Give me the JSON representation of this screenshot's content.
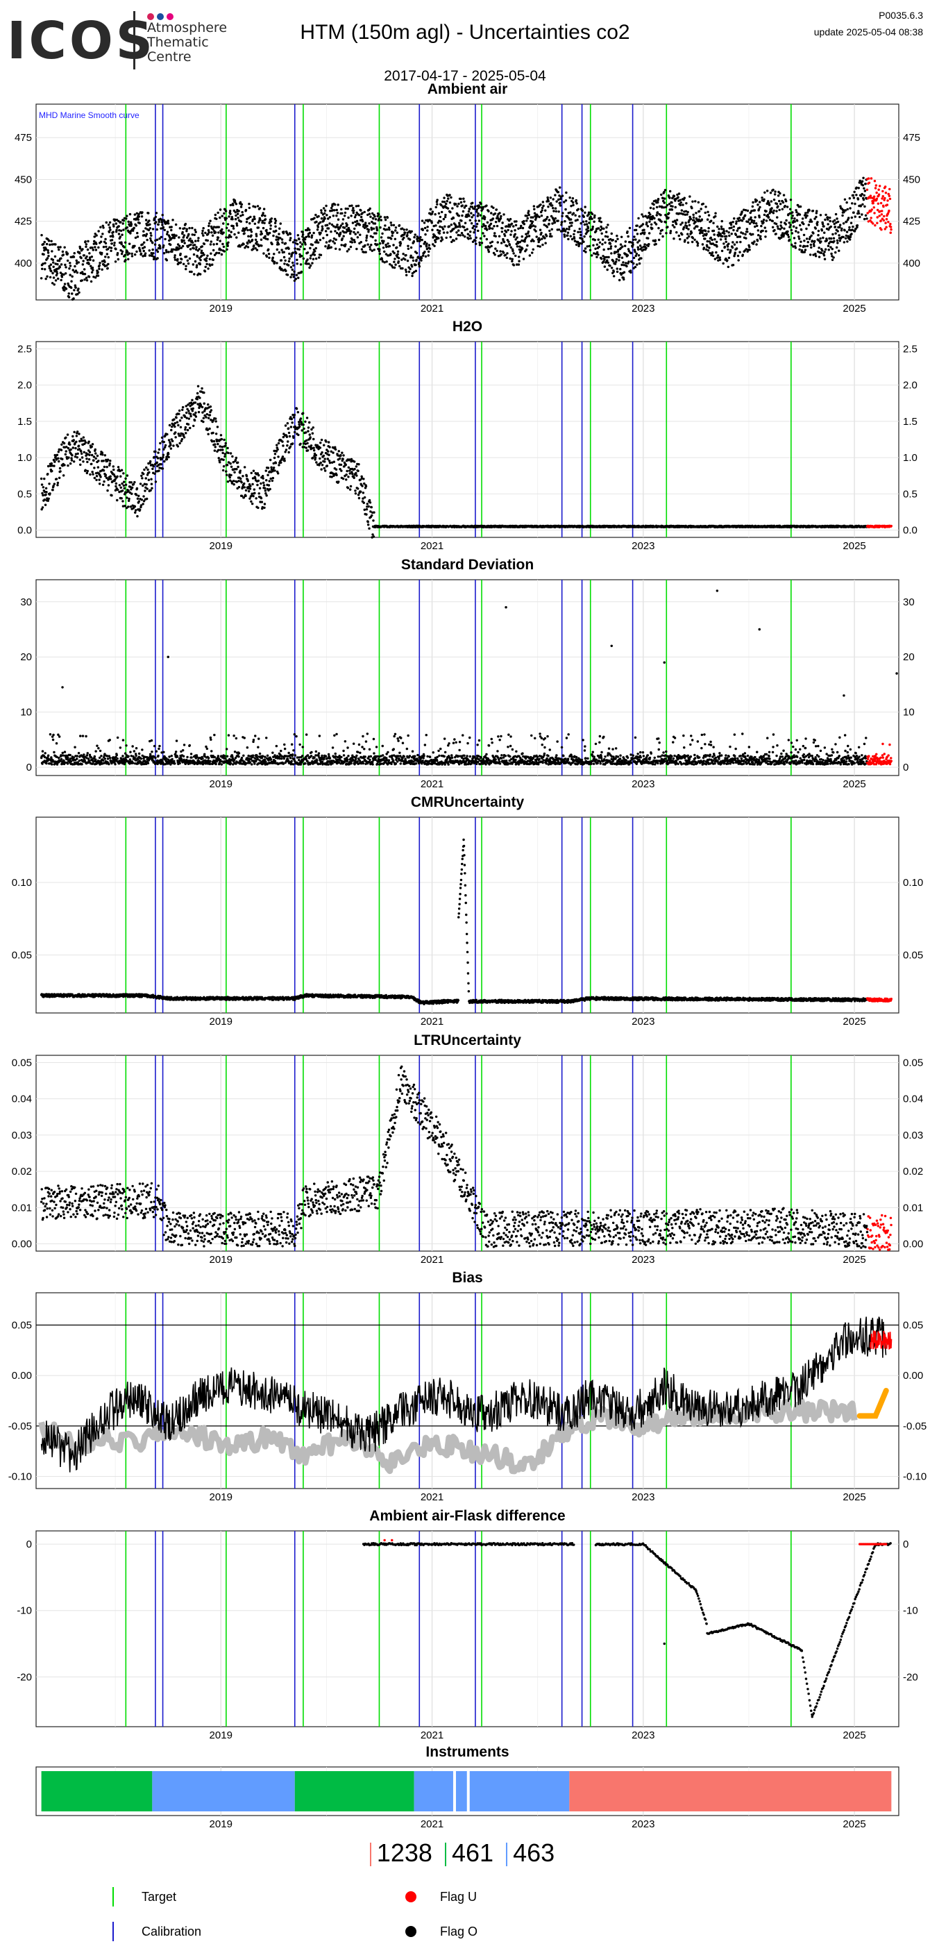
{
  "header": {
    "logo_word": "ICOS",
    "logo_lines": [
      "Atmosphere",
      "Thematic",
      "Centre"
    ],
    "logo_dot_colors": [
      "#d6205a",
      "#1a4fa0",
      "#e5007e"
    ],
    "title": "HTM  (150m agl) - Uncertainties co2",
    "version": "P0035.6.3",
    "update": "update  2025-05-04 08:38",
    "date_range": "2017-04-17 - 2025-05-04"
  },
  "colors": {
    "target": "#00dd00",
    "calibration": "#1a1acc",
    "flag_u": "#ff0000",
    "flag_o": "#000000",
    "smooth": "#bbbbbb",
    "smooth_recent": "#ffa500"
  },
  "event_lines": {
    "target": [
      2018.1,
      2019.05,
      2019.78,
      2020.5,
      2021.47,
      2022.5,
      2023.22,
      2024.4
    ],
    "calibration": [
      2018.38,
      2018.45,
      2019.7,
      2020.88,
      2021.41,
      2022.23,
      2022.42,
      2022.9
    ]
  },
  "chart_data": [
    {
      "type": "scatter",
      "title": "Ambient air",
      "annotation": "MHD Marine Smooth curve",
      "x_ticks": [
        "2019",
        "2021",
        "2023",
        "2025"
      ],
      "y_ticks": [
        "400",
        "425",
        "450",
        "475"
      ],
      "ylim": [
        378,
        495
      ],
      "series": [
        {
          "values_desc": "",
          "points": [
            [
              2017.3,
              405
            ],
            [
              2017.6,
              392
            ],
            [
              2017.9,
              410
            ],
            [
              2018.2,
              418
            ],
            [
              2018.5,
              415
            ],
            [
              2018.8,
              405
            ],
            [
              2019.1,
              425
            ],
            [
              2019.4,
              420
            ],
            [
              2019.7,
              402
            ],
            [
              2020.0,
              422
            ],
            [
              2020.4,
              420
            ],
            [
              2020.8,
              405
            ],
            [
              2021.1,
              428
            ],
            [
              2021.5,
              422
            ],
            [
              2021.8,
              412
            ],
            [
              2022.2,
              432
            ],
            [
              2022.5,
              418
            ],
            [
              2022.8,
              402
            ],
            [
              2023.2,
              430
            ],
            [
              2023.5,
              425
            ],
            [
              2023.8,
              410
            ],
            [
              2024.2,
              432
            ],
            [
              2024.5,
              420
            ],
            [
              2024.8,
              415
            ],
            [
              2025.1,
              440
            ],
            [
              2025.3,
              432
            ]
          ]
        }
      ]
    },
    {
      "type": "scatter",
      "title": "H2O",
      "x_ticks": [
        "2019",
        "2021",
        "2023",
        "2025"
      ],
      "y_ticks": [
        "0.0",
        "0.5",
        "1.0",
        "1.5",
        "2.0",
        "2.5"
      ],
      "ylim": [
        -0.1,
        2.6
      ],
      "series": [
        {
          "points": [
            [
              2017.3,
              0.5
            ],
            [
              2017.6,
              1.2
            ],
            [
              2017.9,
              0.8
            ],
            [
              2018.2,
              0.4
            ],
            [
              2018.5,
              1.2
            ],
            [
              2018.8,
              1.8
            ],
            [
              2019.1,
              0.8
            ],
            [
              2019.4,
              0.5
            ],
            [
              2019.7,
              1.5
            ],
            [
              2020.0,
              1.0
            ],
            [
              2020.3,
              0.7
            ],
            [
              2020.45,
              0.05
            ],
            [
              2021.0,
              0.04
            ],
            [
              2022.0,
              0.05
            ],
            [
              2023.0,
              0.05
            ],
            [
              2024.0,
              0.05
            ],
            [
              2025.3,
              0.05
            ]
          ]
        }
      ]
    },
    {
      "type": "scatter",
      "title": "Standard Deviation",
      "x_ticks": [
        "2019",
        "2021",
        "2023",
        "2025"
      ],
      "y_ticks": [
        "0",
        "10",
        "20",
        "30"
      ],
      "ylim": [
        -1.5,
        34
      ],
      "series": [
        {
          "points": [
            [
              2017.5,
              14.5
            ],
            [
              2018.5,
              20
            ],
            [
              2021.7,
              29
            ],
            [
              2022.7,
              22
            ],
            [
              2023.2,
              19
            ],
            [
              2023.7,
              32
            ],
            [
              2024.1,
              25
            ],
            [
              2024.9,
              13
            ],
            [
              2025.4,
              17
            ]
          ]
        }
      ]
    },
    {
      "type": "scatter",
      "title": "CMRUncertainty",
      "x_ticks": [
        "2019",
        "2021",
        "2023",
        "2025"
      ],
      "y_ticks": [
        "0.05",
        "0.10"
      ],
      "ylim": [
        0.01,
        0.145
      ],
      "series": [
        {
          "points": [
            [
              2017.3,
              0.022
            ],
            [
              2018.3,
              0.022
            ],
            [
              2018.5,
              0.02
            ],
            [
              2019.7,
              0.02
            ],
            [
              2019.8,
              0.022
            ],
            [
              2020.8,
              0.021
            ],
            [
              2020.9,
              0.017
            ],
            [
              2021.2,
              0.018
            ],
            [
              2021.3,
              0.13
            ],
            [
              2021.35,
              0.018
            ],
            [
              2022.3,
              0.018
            ],
            [
              2022.5,
              0.02
            ],
            [
              2025.3,
              0.019
            ]
          ]
        }
      ]
    },
    {
      "type": "scatter",
      "title": "LTRUncertainty",
      "x_ticks": [
        "2019",
        "2021",
        "2023",
        "2025"
      ],
      "y_ticks": [
        "0.00",
        "0.01",
        "0.02",
        "0.03",
        "0.04",
        "0.05"
      ],
      "ylim": [
        -0.002,
        0.052
      ],
      "series": [
        {
          "points": [
            [
              2017.3,
              0.011
            ],
            [
              2018.4,
              0.012
            ],
            [
              2018.5,
              0.004
            ],
            [
              2019.7,
              0.004
            ],
            [
              2019.8,
              0.012
            ],
            [
              2020.5,
              0.014
            ],
            [
              2020.7,
              0.045
            ],
            [
              2021.1,
              0.028
            ],
            [
              2021.5,
              0.004
            ],
            [
              2024.4,
              0.005
            ],
            [
              2025.3,
              0.003
            ]
          ]
        }
      ]
    },
    {
      "type": "line",
      "title": "Bias",
      "x_ticks": [
        "2019",
        "2021",
        "2023",
        "2025"
      ],
      "y_ticks": [
        "-0.10",
        "-0.05",
        "0.00",
        "0.05"
      ],
      "ylim": [
        -0.112,
        0.082
      ],
      "reference_lines": [
        0.05,
        -0.05
      ],
      "series": [
        {
          "points": [
            [
              2017.3,
              -0.06
            ],
            [
              2017.6,
              -0.08
            ],
            [
              2017.9,
              -0.04
            ],
            [
              2018.2,
              -0.02
            ],
            [
              2018.5,
              -0.05
            ],
            [
              2018.8,
              -0.02
            ],
            [
              2019.1,
              -0.01
            ],
            [
              2019.5,
              -0.02
            ],
            [
              2019.7,
              -0.03
            ],
            [
              2020.0,
              -0.04
            ],
            [
              2020.4,
              -0.06
            ],
            [
              2020.8,
              -0.03
            ],
            [
              2021.1,
              -0.02
            ],
            [
              2021.5,
              -0.04
            ],
            [
              2021.9,
              -0.02
            ],
            [
              2022.3,
              -0.04
            ],
            [
              2022.5,
              -0.02
            ],
            [
              2022.9,
              -0.04
            ],
            [
              2023.2,
              -0.01
            ],
            [
              2023.5,
              -0.035
            ],
            [
              2024.0,
              -0.03
            ],
            [
              2024.5,
              -0.01
            ],
            [
              2024.9,
              0.035
            ],
            [
              2025.2,
              0.04
            ],
            [
              2025.3,
              0.035
            ]
          ]
        },
        {
          "points": [
            [
              2017.3,
              -0.05
            ],
            [
              2017.6,
              -0.07
            ],
            [
              2017.9,
              -0.06
            ],
            [
              2018.2,
              -0.07
            ],
            [
              2018.5,
              -0.05
            ],
            [
              2018.8,
              -0.06
            ],
            [
              2019.1,
              -0.07
            ],
            [
              2019.5,
              -0.06
            ],
            [
              2019.8,
              -0.08
            ],
            [
              2020.2,
              -0.06
            ],
            [
              2020.6,
              -0.09
            ],
            [
              2020.9,
              -0.07
            ],
            [
              2021.2,
              -0.07
            ],
            [
              2021.6,
              -0.08
            ],
            [
              2021.9,
              -0.09
            ],
            [
              2022.2,
              -0.06
            ],
            [
              2022.6,
              -0.04
            ],
            [
              2023.0,
              -0.05
            ],
            [
              2023.4,
              -0.04
            ],
            [
              2024.0,
              -0.035
            ],
            [
              2025.0,
              -0.035
            ]
          ]
        },
        {
          "points": [
            [
              2025.05,
              -0.04
            ],
            [
              2025.2,
              -0.04
            ],
            [
              2025.3,
              -0.015
            ]
          ]
        }
      ]
    },
    {
      "type": "scatter",
      "title": "Ambient air-Flask difference",
      "x_ticks": [
        "2019",
        "2021",
        "2023",
        "2025"
      ],
      "y_ticks": [
        "-20",
        "-10",
        "0"
      ],
      "ylim": [
        -27.5,
        2
      ],
      "series": [
        {
          "points": [
            [
              2020.4,
              0
            ],
            [
              2021.0,
              0
            ],
            [
              2022.0,
              0
            ],
            [
              2023.0,
              0
            ],
            [
              2023.5,
              -7
            ],
            [
              2023.6,
              -12
            ],
            [
              2023.2,
              -15
            ],
            [
              2024.0,
              -12
            ],
            [
              2024.5,
              -16
            ],
            [
              2024.6,
              -26
            ],
            [
              2025.2,
              0
            ]
          ]
        }
      ]
    },
    {
      "type": "bar",
      "title": "Instruments",
      "x_ticks": [
        "2019",
        "2021",
        "2023",
        "2025"
      ],
      "segments": [
        {
          "start": 2017.3,
          "end": 2018.35,
          "color": "#00bb44"
        },
        {
          "start": 2018.35,
          "end": 2019.7,
          "color": "#619cff"
        },
        {
          "start": 2019.7,
          "end": 2020.83,
          "color": "#00bb44"
        },
        {
          "start": 2020.83,
          "end": 2022.3,
          "color": "#619cff"
        },
        {
          "start": 2022.3,
          "end": 2025.35,
          "color": "#f8766d"
        }
      ],
      "counts": [
        "1238",
        "461",
        "463"
      ],
      "count_colors": [
        "#f8766d",
        "#00bb44",
        "#619cff"
      ]
    }
  ],
  "legend": {
    "target": "Target",
    "calibration": "Calibration",
    "flag_u": "Flag U",
    "flag_o": "Flag O"
  }
}
